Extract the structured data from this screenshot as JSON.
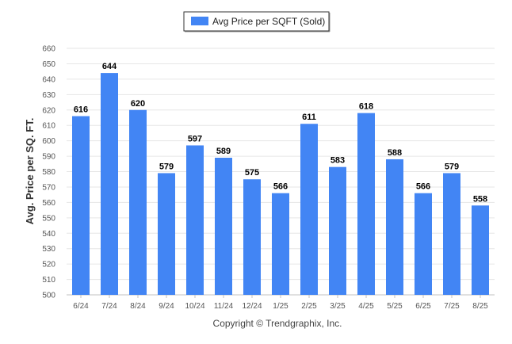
{
  "chart_data": {
    "type": "bar",
    "categories": [
      "6/24",
      "7/24",
      "8/24",
      "9/24",
      "10/24",
      "11/24",
      "12/24",
      "1/25",
      "2/25",
      "3/25",
      "4/25",
      "5/25",
      "6/25",
      "7/25",
      "8/25"
    ],
    "series": [
      {
        "name": "Avg Price per SQFT (Sold)",
        "values": [
          616,
          644,
          620,
          579,
          597,
          589,
          575,
          566,
          611,
          583,
          618,
          588,
          566,
          579,
          558
        ]
      }
    ],
    "ylabel": "Avg. Price per SQ. FT.",
    "xlabel": "",
    "ylim": [
      500,
      660
    ],
    "yticks": [
      500,
      510,
      520,
      530,
      540,
      550,
      560,
      570,
      580,
      590,
      600,
      610,
      620,
      630,
      640,
      650,
      660
    ],
    "grid": true,
    "legend_position": "top-center",
    "bar_color": "#4285f4"
  },
  "footer": "Copyright © Trendgraphix, Inc."
}
